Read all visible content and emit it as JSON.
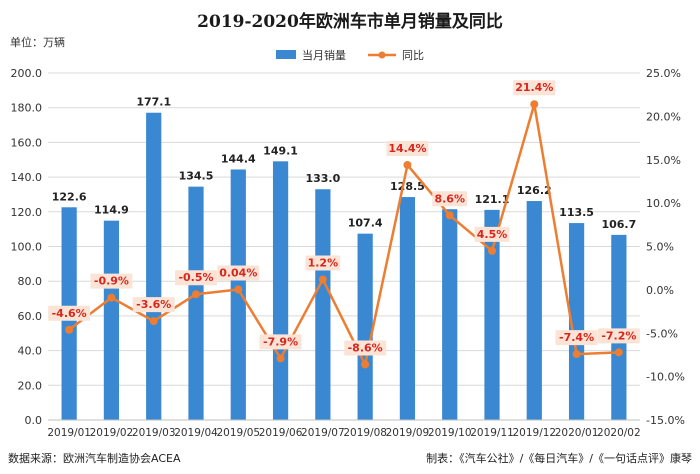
{
  "chart_data": {
    "type": "bar",
    "title": "2019-2020年欧洲车市单月销量及同比",
    "unit_label": "单位：万辆",
    "categories": [
      "2019/01",
      "2019/02",
      "2019/03",
      "2019/04",
      "2019/05",
      "2019/06",
      "2019/07",
      "2019/08",
      "2019/09",
      "2019/10",
      "2019/11",
      "2019/12",
      "2020/01",
      "2020/02"
    ],
    "series": [
      {
        "name": "当月销量",
        "type": "bar",
        "axis": "left",
        "color": "#3a88d2",
        "values": [
          122.6,
          114.9,
          177.1,
          134.5,
          144.4,
          149.1,
          133.0,
          107.4,
          128.5,
          121.5,
          121.1,
          126.2,
          113.5,
          106.7
        ],
        "labels": [
          "122.6",
          "114.9",
          "177.1",
          "134.5",
          "144.4",
          "149.1",
          "133.0",
          "107.4",
          "128.5",
          "121.5",
          "121.1",
          "126.2",
          "113.5",
          "106.7"
        ]
      },
      {
        "name": "同比",
        "type": "line",
        "axis": "right",
        "color": "#ed7d31",
        "values": [
          -4.6,
          -0.9,
          -3.6,
          -0.5,
          0.04,
          -7.9,
          1.2,
          -8.6,
          14.4,
          8.6,
          4.5,
          21.4,
          -7.4,
          -7.2
        ],
        "labels": [
          "-4.6%",
          "-0.9%",
          "-3.6%",
          "-0.5%",
          "0.04%",
          "-7.9%",
          "1.2%",
          "-8.6%",
          "14.4%",
          "8.6%",
          "4.5%",
          "21.4%",
          "-7.4%",
          "-7.2%"
        ]
      }
    ],
    "ylim_left": [
      0,
      200
    ],
    "yticks_left": [
      "0.0",
      "20.0",
      "40.0",
      "60.0",
      "80.0",
      "100.0",
      "120.0",
      "140.0",
      "160.0",
      "180.0",
      "200.0"
    ],
    "ylim_right": [
      -15,
      25
    ],
    "yticks_right": [
      "-15.0%",
      "-10.0%",
      "-5.0%",
      "0.0%",
      "5.0%",
      "10.0%",
      "15.0%",
      "20.0%",
      "25.0%"
    ],
    "legend_position": "top-center",
    "grid": true
  },
  "footer": {
    "source": "数据来源：欧洲汽车制造协会ACEA",
    "credit": "制表：《汽车公社》/《每日汽车》/《一句话点评》康琴"
  }
}
